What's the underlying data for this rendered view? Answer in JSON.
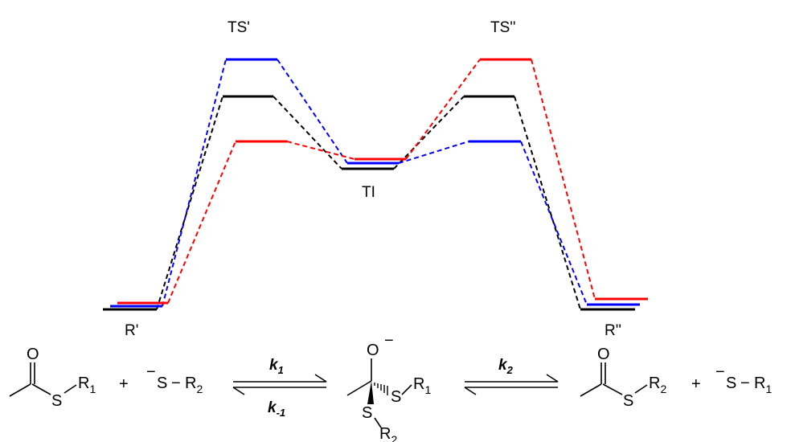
{
  "diagram": {
    "colors": {
      "black": "#000000",
      "blue": "#0000ff",
      "red": "#ff0000"
    },
    "labels": {
      "ts1": "TS'",
      "ts2": "TS''",
      "ti": "TI",
      "r1": "R'",
      "r2": "R''"
    }
  },
  "reaction": {
    "reactant": {
      "o": "O",
      "s": "S",
      "r": "R",
      "r_sub": "1"
    },
    "plus1": "+",
    "nucleophile": {
      "minus": "−",
      "s": "S",
      "dash": "−",
      "r": "R",
      "r_sub": "2"
    },
    "k1": {
      "k": "k",
      "sub": "1"
    },
    "km1": {
      "k": "k",
      "sub": "-1"
    },
    "k2": {
      "k": "k",
      "sub": "2"
    },
    "intermediate": {
      "o": "O",
      "minus": "−",
      "s_right": "S",
      "r_right": "R",
      "r_right_sub": "1",
      "s_down": "S",
      "r_down": "R",
      "r_down_sub": "2"
    },
    "product": {
      "o": "O",
      "s": "S",
      "r": "R",
      "r_sub": "2"
    },
    "plus2": "+",
    "leaving": {
      "minus": "−",
      "s": "S",
      "dash": "−",
      "r": "R",
      "r_sub": "1"
    }
  }
}
